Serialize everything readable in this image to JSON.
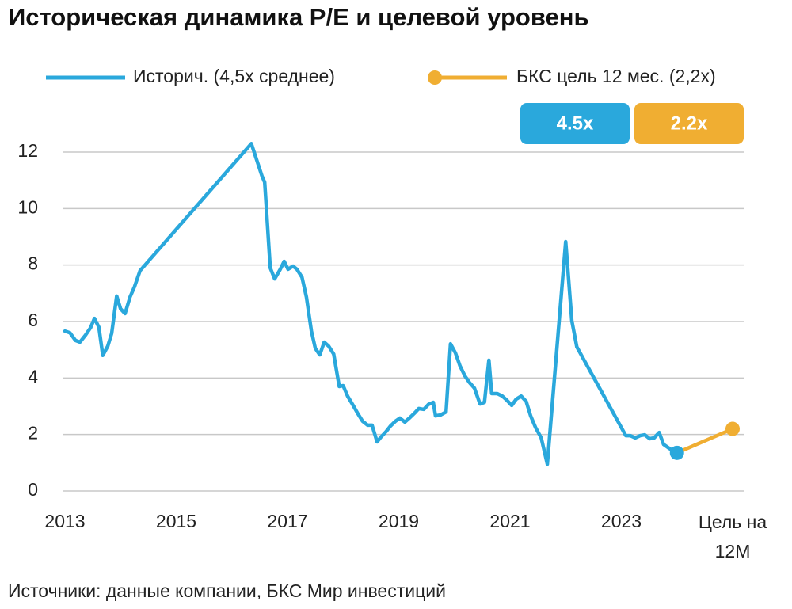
{
  "chart_data": {
    "type": "line",
    "title": "Историческая динамика P/E и целевой уровень",
    "source": "Источники: данные компании, БКС Мир инвестиций",
    "annotations": [
      "4.5x",
      "2.2x"
    ],
    "xlim": [
      2013,
      2025
    ],
    "ylim": [
      0,
      12.6
    ],
    "xticks": [
      2013,
      2015,
      2017,
      2019,
      2021,
      2023,
      {
        "value": 2025,
        "label": "Цель на 12М"
      }
    ],
    "yticks": [
      0,
      2,
      4,
      6,
      8,
      10,
      12
    ],
    "grid": true,
    "series": [
      {
        "name": "Историч. (4,5х среднее)",
        "color": "#2aa8dc",
        "x": [
          2013.0,
          2013.09,
          2013.19,
          2013.27,
          2013.37,
          2013.46,
          2013.53,
          2013.61,
          2013.68,
          2013.77,
          2013.84,
          2013.93,
          2014.0,
          2014.08,
          2014.17,
          2014.25,
          2014.35,
          2016.35,
          2016.54,
          2016.59,
          2016.69,
          2016.77,
          2016.87,
          2016.94,
          2017.01,
          2017.1,
          2017.17,
          2017.26,
          2017.34,
          2017.43,
          2017.5,
          2017.58,
          2017.66,
          2017.74,
          2017.83,
          2017.93,
          2018.0,
          2018.08,
          2018.18,
          2018.27,
          2018.35,
          2018.44,
          2018.52,
          2018.61,
          2018.68,
          2018.77,
          2018.85,
          2018.94,
          2019.02,
          2019.11,
          2019.19,
          2019.28,
          2019.36,
          2019.45,
          2019.53,
          2019.62,
          2019.66,
          2019.75,
          2019.85,
          2019.93,
          2020.02,
          2020.1,
          2020.19,
          2020.27,
          2020.36,
          2020.46,
          2020.54,
          2020.62,
          2020.67,
          2020.77,
          2020.86,
          2020.94,
          2021.03,
          2021.11,
          2021.2,
          2021.29,
          2021.37,
          2021.46,
          2021.56,
          2021.67,
          2022.0,
          2022.11,
          2022.2,
          2023.08,
          2023.16,
          2023.25,
          2023.34,
          2023.42,
          2023.51,
          2023.59,
          2023.68,
          2023.76,
          2023.86,
          2024.0
        ],
        "values": [
          5.66,
          5.6,
          5.33,
          5.27,
          5.52,
          5.78,
          6.11,
          5.8,
          4.8,
          5.13,
          5.58,
          6.9,
          6.45,
          6.28,
          6.87,
          7.23,
          7.8,
          12.3,
          11.16,
          10.93,
          7.9,
          7.51,
          7.85,
          8.13,
          7.85,
          7.96,
          7.85,
          7.57,
          6.87,
          5.66,
          5.05,
          4.82,
          5.27,
          5.13,
          4.85,
          3.7,
          3.73,
          3.36,
          3.03,
          2.72,
          2.47,
          2.33,
          2.33,
          1.74,
          1.91,
          2.1,
          2.3,
          2.47,
          2.58,
          2.44,
          2.58,
          2.75,
          2.92,
          2.89,
          3.06,
          3.14,
          2.66,
          2.69,
          2.8,
          5.21,
          4.88,
          4.43,
          4.07,
          3.84,
          3.64,
          3.08,
          3.14,
          4.63,
          3.45,
          3.45,
          3.36,
          3.22,
          3.03,
          3.25,
          3.36,
          3.17,
          2.66,
          2.24,
          1.88,
          0.95,
          8.83,
          6.03,
          5.1,
          1.96,
          1.96,
          1.88,
          1.96,
          1.99,
          1.85,
          1.88,
          2.07,
          1.65,
          1.51,
          1.35
        ]
      },
      {
        "name": "БКС цель 12 мес. (2,2х)",
        "color": "#f0ae32",
        "x": [
          2024.0,
          2025.0
        ],
        "values": [
          1.35,
          2.2
        ]
      }
    ]
  }
}
